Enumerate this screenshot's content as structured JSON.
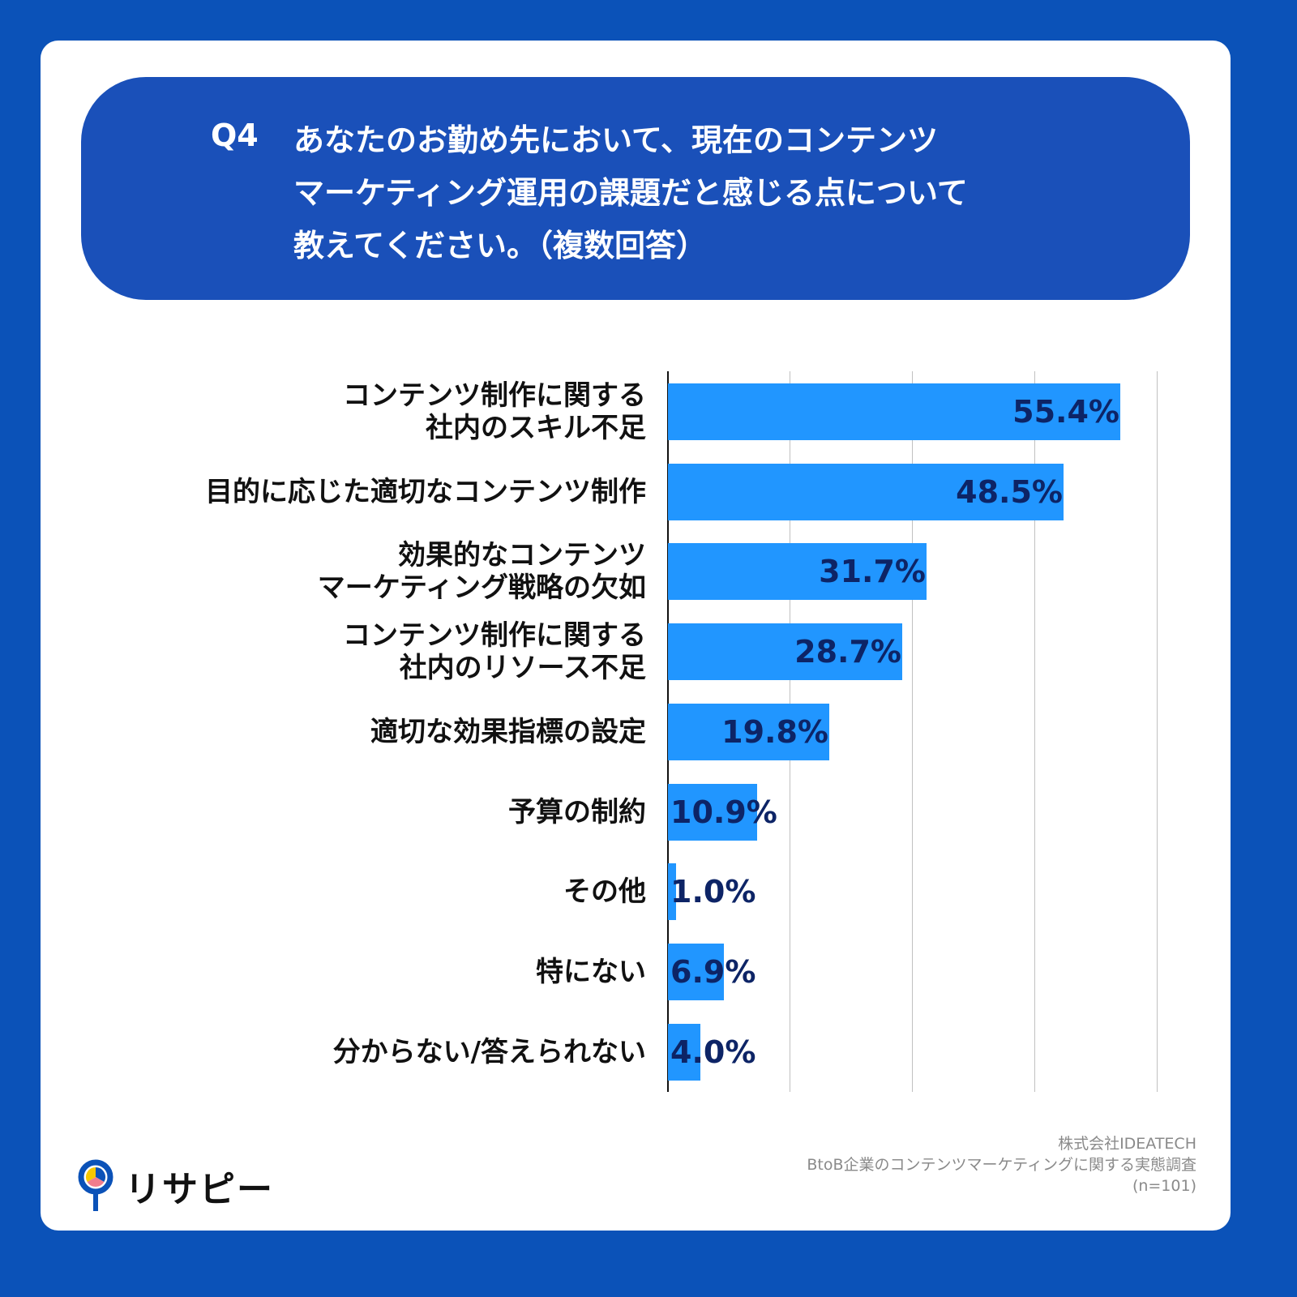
{
  "header": {
    "question_no": "Q4",
    "lines": [
      "あなたのお勤め先において、現在のコンテンツ",
      "マーケティング運用の課題だと感じる点について",
      "教えてください。（複数回答）"
    ]
  },
  "colors": {
    "background": "#0b52b8",
    "title_bg": "#1a50b9",
    "bar": "#2196ff",
    "value_text": "#0d2466"
  },
  "chart_data": {
    "type": "bar",
    "orientation": "horizontal",
    "title": "Q4 あなたのお勤め先において、現在のコンテンツマーケティング運用の課題だと感じる点について教えてください。（複数回答）",
    "categories": [
      "コンテンツ制作に関する社内のスキル不足",
      "目的に応じた適切なコンテンツ制作",
      "効果的なコンテンツマーケティング戦略の欠如",
      "コンテンツ制作に関する社内のリソース不足",
      "適切な効果指標の設定",
      "予算の制約",
      "その他",
      "特にない",
      "分からない/答えられない"
    ],
    "values": [
      55.4,
      48.5,
      31.7,
      28.7,
      19.8,
      10.9,
      1.0,
      6.9,
      4.0
    ],
    "xlim": [
      0,
      60
    ],
    "grid": true,
    "gridlines": [
      15,
      30,
      45,
      60
    ],
    "unit": "%"
  },
  "rows": [
    {
      "label_lines": [
        "コンテンツ制作に関する",
        "社内のスキル不足"
      ],
      "value": 55.4,
      "value_label": "55.4%"
    },
    {
      "label_lines": [
        "目的に応じた適切なコンテンツ制作"
      ],
      "value": 48.5,
      "value_label": "48.5%"
    },
    {
      "label_lines": [
        "効果的なコンテンツ",
        "マーケティング戦略の欠如"
      ],
      "value": 31.7,
      "value_label": "31.7%"
    },
    {
      "label_lines": [
        "コンテンツ制作に関する",
        "社内のリソース不足"
      ],
      "value": 28.7,
      "value_label": "28.7%"
    },
    {
      "label_lines": [
        "適切な効果指標の設定"
      ],
      "value": 19.8,
      "value_label": "19.8%"
    },
    {
      "label_lines": [
        "予算の制約"
      ],
      "value": 10.9,
      "value_label": "10.9%"
    },
    {
      "label_lines": [
        "その他"
      ],
      "value": 1.0,
      "value_label": "1.0%"
    },
    {
      "label_lines": [
        "特にない"
      ],
      "value": 6.9,
      "value_label": "6.9%"
    },
    {
      "label_lines": [
        "分からない/答えられない"
      ],
      "value": 4.0,
      "value_label": "4.0%"
    }
  ],
  "footer": {
    "logo_text": "リサピー",
    "source_lines": [
      "株式会社IDEATECH",
      "BtoB企業のコンテンツマーケティングに関する実態調査",
      "(n=101)"
    ]
  }
}
